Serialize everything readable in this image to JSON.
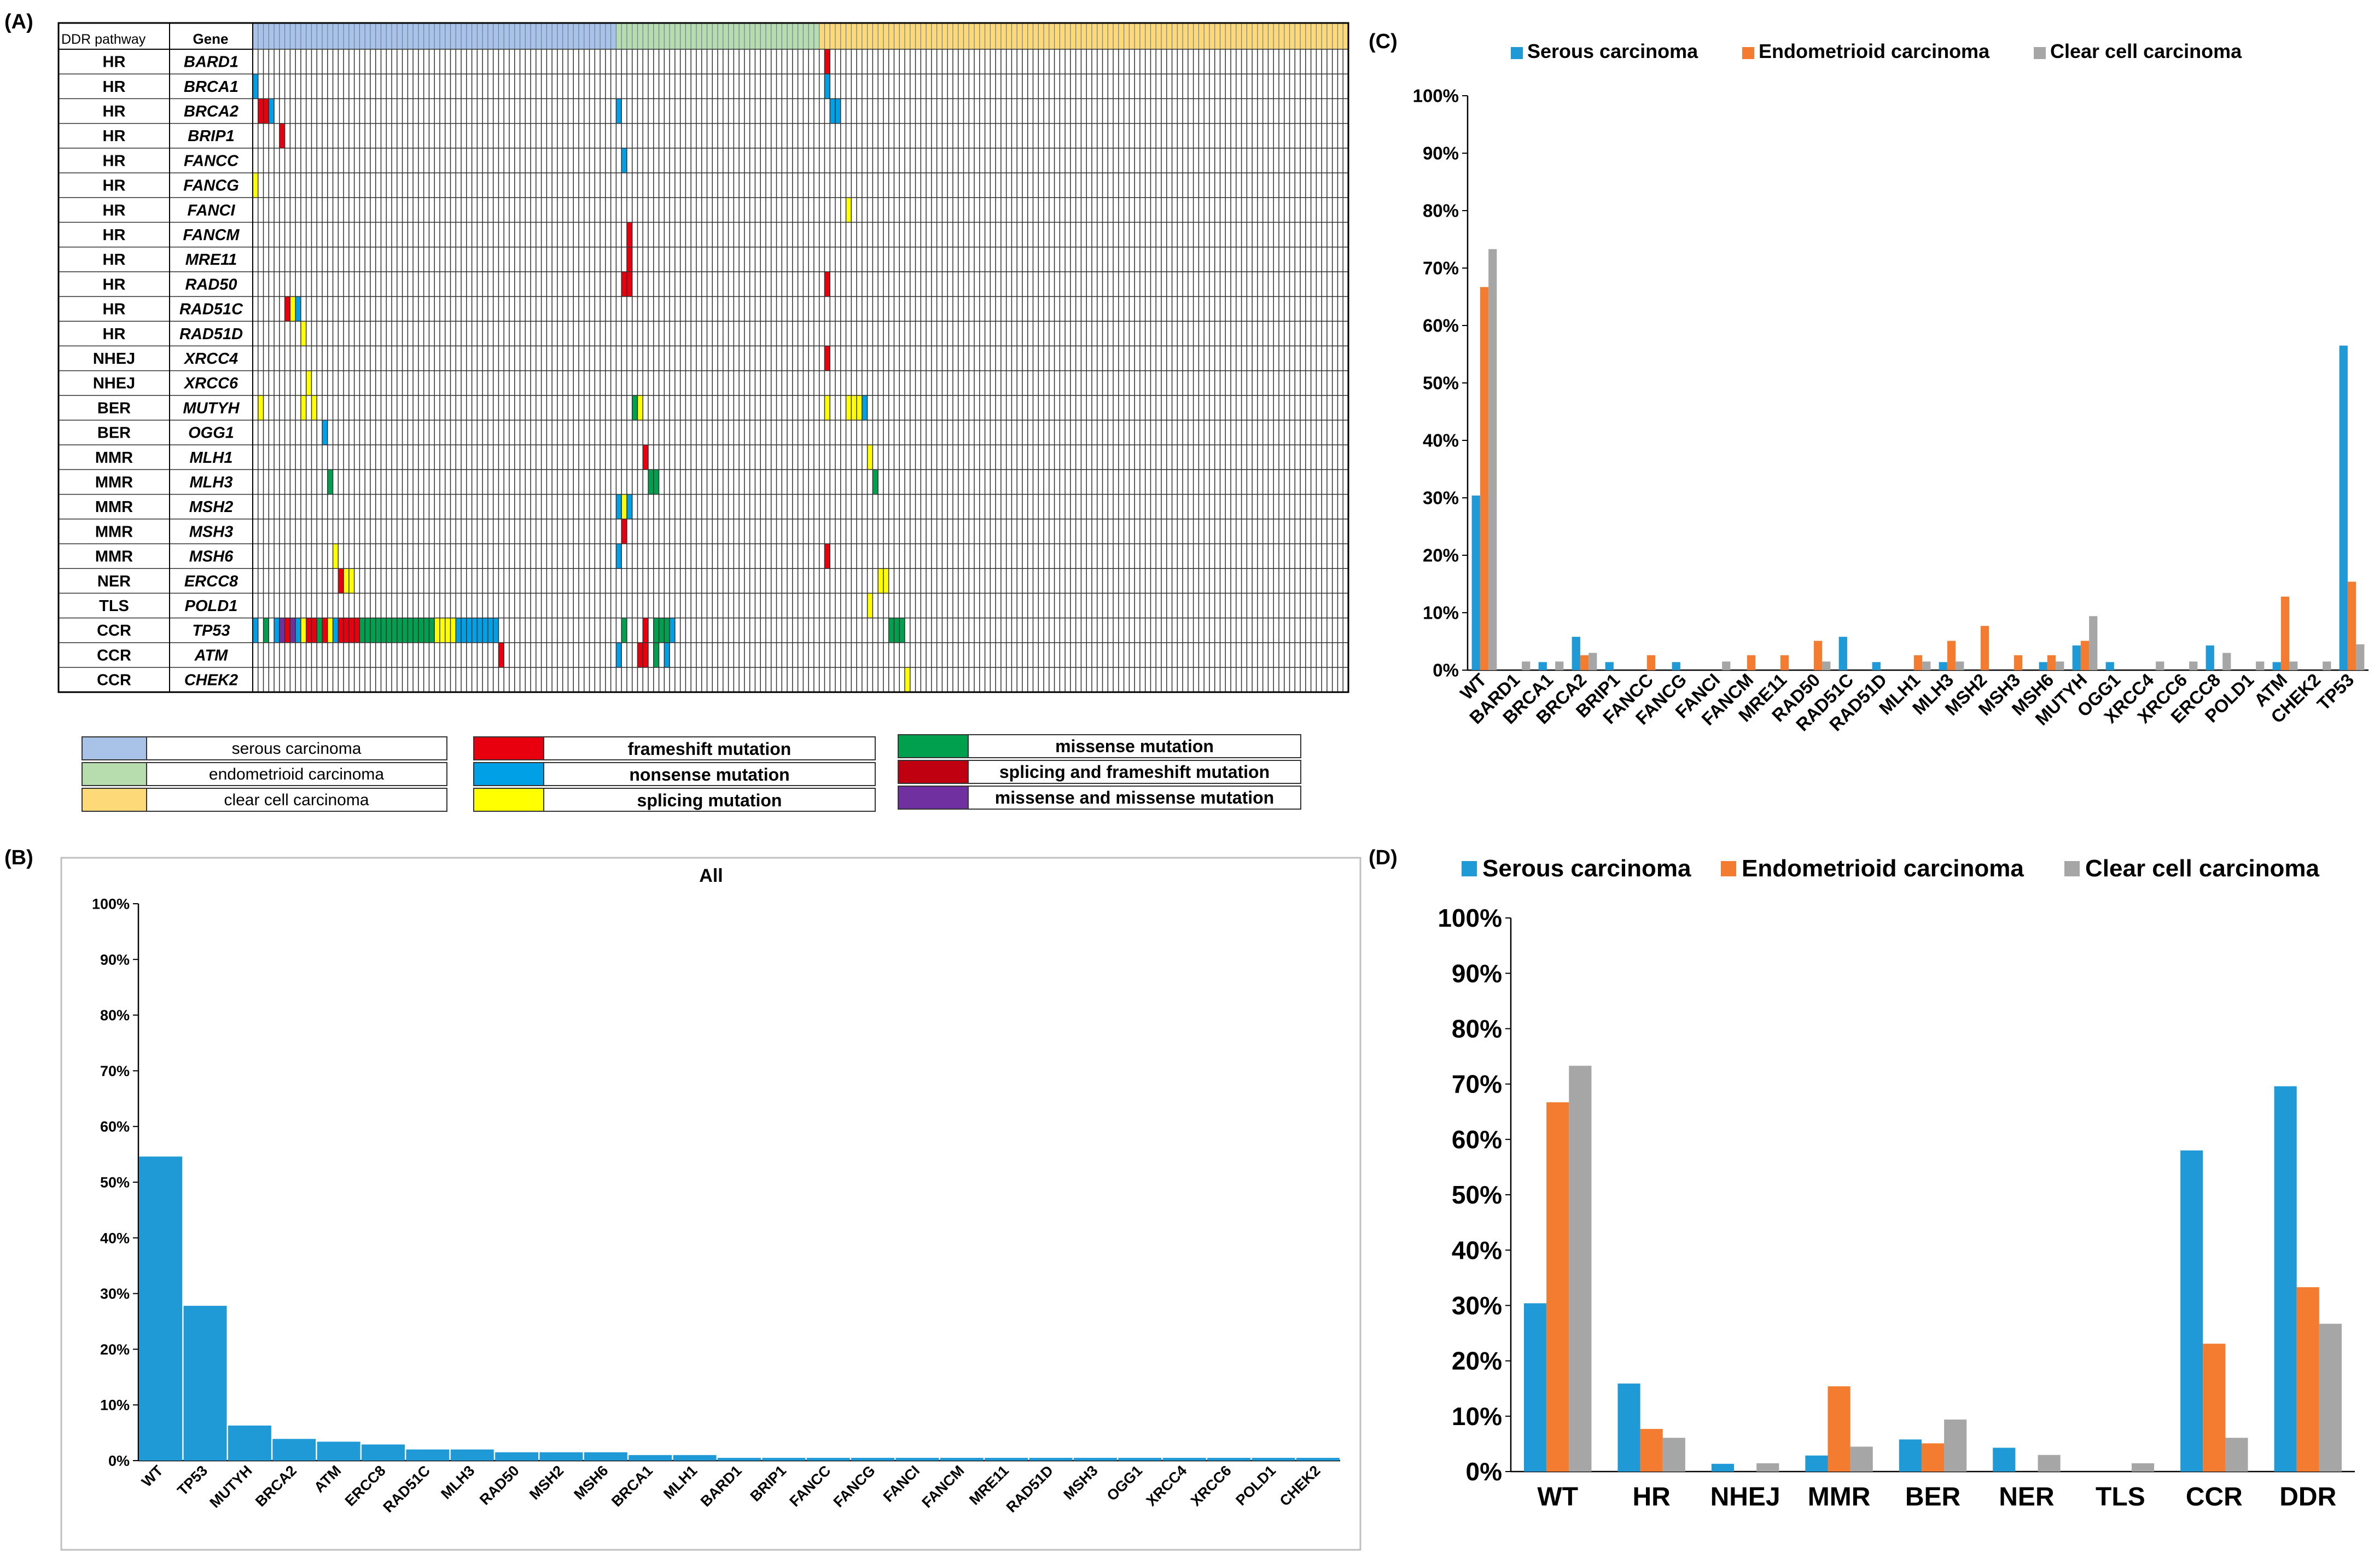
{
  "panel_labels": {
    "a": "(A)",
    "b": "(B)",
    "c": "(C)",
    "d": "(D)"
  },
  "colors": {
    "serous": "#1f9ad6",
    "endometrioid": "#f47c30",
    "clear_cell": "#a6a6a6",
    "serous_bg": "#a9c3e8",
    "endometrioid_bg": "#b7dcae",
    "clear_cell_bg": "#fdd977",
    "frameshift": "#e8000e",
    "nonsense": "#00a0e6",
    "splicing": "#ffff00",
    "missense": "#00a04e",
    "splice_frameshift": "#c00010",
    "missense_missense": "#7030a0",
    "grid": "#303030"
  },
  "oncoprint": {
    "header_pathway": "DDR pathway",
    "header_gene": "Gene",
    "n_samples": 205,
    "group_sizes": [
      68,
      38,
      99
    ],
    "rows": [
      {
        "pathway": "HR",
        "gene": "BARD1"
      },
      {
        "pathway": "HR",
        "gene": "BRCA1"
      },
      {
        "pathway": "HR",
        "gene": "BRCA2"
      },
      {
        "pathway": "HR",
        "gene": "BRIP1"
      },
      {
        "pathway": "HR",
        "gene": "FANCC"
      },
      {
        "pathway": "HR",
        "gene": "FANCG"
      },
      {
        "pathway": "HR",
        "gene": "FANCI"
      },
      {
        "pathway": "HR",
        "gene": "FANCM"
      },
      {
        "pathway": "HR",
        "gene": "MRE11"
      },
      {
        "pathway": "HR",
        "gene": "RAD50"
      },
      {
        "pathway": "HR",
        "gene": "RAD51C"
      },
      {
        "pathway": "HR",
        "gene": "RAD51D"
      },
      {
        "pathway": "NHEJ",
        "gene": "XRCC4"
      },
      {
        "pathway": "NHEJ",
        "gene": "XRCC6"
      },
      {
        "pathway": "BER",
        "gene": "MUTYH"
      },
      {
        "pathway": "BER",
        "gene": "OGG1"
      },
      {
        "pathway": "MMR",
        "gene": "MLH1"
      },
      {
        "pathway": "MMR",
        "gene": "MLH3"
      },
      {
        "pathway": "MMR",
        "gene": "MSH2"
      },
      {
        "pathway": "MMR",
        "gene": "MSH3"
      },
      {
        "pathway": "MMR",
        "gene": "MSH6"
      },
      {
        "pathway": "NER",
        "gene": "ERCC8"
      },
      {
        "pathway": "TLS",
        "gene": "POLD1"
      },
      {
        "pathway": "CCR",
        "gene": "TP53"
      },
      {
        "pathway": "CCR",
        "gene": "ATM"
      },
      {
        "pathway": "CCR",
        "gene": "CHEK2"
      }
    ],
    "mutations": [
      [
        0,
        107,
        "F"
      ],
      [
        1,
        0,
        "N"
      ],
      [
        1,
        107,
        "N"
      ],
      [
        2,
        1,
        "F"
      ],
      [
        2,
        2,
        "F"
      ],
      [
        2,
        3,
        "N"
      ],
      [
        2,
        68,
        "N"
      ],
      [
        2,
        108,
        "N"
      ],
      [
        2,
        109,
        "N"
      ],
      [
        3,
        5,
        "F"
      ],
      [
        4,
        69,
        "N"
      ],
      [
        5,
        0,
        "S"
      ],
      [
        6,
        111,
        "S"
      ],
      [
        7,
        70,
        "F"
      ],
      [
        8,
        70,
        "F"
      ],
      [
        9,
        69,
        "F"
      ],
      [
        9,
        70,
        "F"
      ],
      [
        9,
        107,
        "F"
      ],
      [
        10,
        6,
        "F"
      ],
      [
        10,
        7,
        "S"
      ],
      [
        10,
        8,
        "N"
      ],
      [
        11,
        9,
        "S"
      ],
      [
        12,
        107,
        "F"
      ],
      [
        13,
        10,
        "S"
      ],
      [
        14,
        1,
        "S"
      ],
      [
        14,
        9,
        "S"
      ],
      [
        14,
        11,
        "S"
      ],
      [
        14,
        71,
        "M"
      ],
      [
        14,
        72,
        "S"
      ],
      [
        14,
        107,
        "S"
      ],
      [
        14,
        111,
        "S"
      ],
      [
        14,
        112,
        "S"
      ],
      [
        14,
        113,
        "S"
      ],
      [
        14,
        114,
        "N"
      ],
      [
        15,
        13,
        "N"
      ],
      [
        16,
        73,
        "F"
      ],
      [
        16,
        115,
        "S"
      ],
      [
        17,
        14,
        "M"
      ],
      [
        17,
        74,
        "M"
      ],
      [
        17,
        75,
        "M"
      ],
      [
        17,
        116,
        "M"
      ],
      [
        18,
        68,
        "N"
      ],
      [
        18,
        69,
        "S"
      ],
      [
        18,
        70,
        "N"
      ],
      [
        19,
        69,
        "F"
      ],
      [
        20,
        15,
        "S"
      ],
      [
        20,
        68,
        "N"
      ],
      [
        20,
        107,
        "F"
      ],
      [
        21,
        16,
        "F"
      ],
      [
        21,
        17,
        "S"
      ],
      [
        21,
        18,
        "S"
      ],
      [
        21,
        117,
        "S"
      ],
      [
        21,
        118,
        "S"
      ],
      [
        22,
        115,
        "S"
      ],
      [
        23,
        0,
        "N"
      ],
      [
        23,
        2,
        "M"
      ],
      [
        23,
        4,
        "N"
      ],
      [
        23,
        5,
        "P"
      ],
      [
        23,
        6,
        "F"
      ],
      [
        23,
        7,
        "P"
      ],
      [
        23,
        8,
        "N"
      ],
      [
        23,
        9,
        "S"
      ],
      [
        23,
        10,
        "F"
      ],
      [
        23,
        11,
        "F"
      ],
      [
        23,
        12,
        "M"
      ],
      [
        23,
        13,
        "F"
      ],
      [
        23,
        14,
        "S"
      ],
      [
        23,
        15,
        "N"
      ],
      [
        23,
        16,
        "F"
      ],
      [
        23,
        17,
        "F"
      ],
      [
        23,
        18,
        "F"
      ],
      [
        23,
        19,
        "F"
      ],
      [
        23,
        20,
        "M"
      ],
      [
        23,
        21,
        "M"
      ],
      [
        23,
        22,
        "M"
      ],
      [
        23,
        23,
        "M"
      ],
      [
        23,
        24,
        "M"
      ],
      [
        23,
        25,
        "M"
      ],
      [
        23,
        26,
        "M"
      ],
      [
        23,
        27,
        "M"
      ],
      [
        23,
        28,
        "M"
      ],
      [
        23,
        29,
        "M"
      ],
      [
        23,
        30,
        "M"
      ],
      [
        23,
        31,
        "M"
      ],
      [
        23,
        32,
        "M"
      ],
      [
        23,
        33,
        "M"
      ],
      [
        23,
        34,
        "S"
      ],
      [
        23,
        35,
        "S"
      ],
      [
        23,
        36,
        "S"
      ],
      [
        23,
        37,
        "S"
      ],
      [
        23,
        38,
        "N"
      ],
      [
        23,
        39,
        "N"
      ],
      [
        23,
        40,
        "N"
      ],
      [
        23,
        41,
        "N"
      ],
      [
        23,
        42,
        "N"
      ],
      [
        23,
        43,
        "N"
      ],
      [
        23,
        44,
        "N"
      ],
      [
        23,
        45,
        "N"
      ],
      [
        23,
        69,
        "M"
      ],
      [
        23,
        73,
        "F"
      ],
      [
        23,
        75,
        "M"
      ],
      [
        23,
        76,
        "M"
      ],
      [
        23,
        77,
        "M"
      ],
      [
        23,
        78,
        "N"
      ],
      [
        23,
        119,
        "M"
      ],
      [
        23,
        120,
        "M"
      ],
      [
        23,
        121,
        "M"
      ],
      [
        24,
        46,
        "F"
      ],
      [
        24,
        68,
        "N"
      ],
      [
        24,
        72,
        "F"
      ],
      [
        24,
        73,
        "F"
      ],
      [
        24,
        75,
        "M"
      ],
      [
        24,
        77,
        "N"
      ],
      [
        25,
        122,
        "S"
      ]
    ],
    "legend": {
      "groups": [
        "serous carcinoma",
        "endometrioid carcinoma",
        "clear cell carcinoma"
      ],
      "types": [
        {
          "code": "F",
          "label": "frameshift mutation"
        },
        {
          "code": "N",
          "label": "nonsense mutation"
        },
        {
          "code": "S",
          "label": "splicing mutation"
        },
        {
          "code": "M",
          "label": "missense mutation"
        },
        {
          "code": "X",
          "label": "splicing and frameshift mutation"
        },
        {
          "code": "P",
          "label": "missense and missense mutation"
        }
      ]
    }
  },
  "chart_data": [
    {
      "panel": "B",
      "type": "bar",
      "title": "All",
      "xlabel": "",
      "ylabel": "",
      "ylim": [
        0,
        100
      ],
      "yticks": [
        "0%",
        "10%",
        "20%",
        "30%",
        "40%",
        "50%",
        "60%",
        "70%",
        "80%",
        "90%",
        "100%"
      ],
      "categories": [
        "WT",
        "TP53",
        "MUTYH",
        "BRCA2",
        "ATM",
        "ERCC8",
        "RAD51C",
        "MLH3",
        "RAD50",
        "MSH2",
        "MSH6",
        "BRCA1",
        "MLH1",
        "BARD1",
        "BRIP1",
        "FANCC",
        "FANCG",
        "FANCI",
        "FANCM",
        "MRE11",
        "RAD51D",
        "MSH3",
        "OGG1",
        "XRCC4",
        "XRCC6",
        "POLD1",
        "CHEK2"
      ],
      "values": [
        54.6,
        27.8,
        6.3,
        3.9,
        3.4,
        2.9,
        2.0,
        2.0,
        1.5,
        1.5,
        1.5,
        1.0,
        1.0,
        0.5,
        0.5,
        0.5,
        0.5,
        0.5,
        0.5,
        0.5,
        0.5,
        0.5,
        0.5,
        0.5,
        0.5,
        0.5,
        0.5
      ]
    },
    {
      "panel": "C",
      "type": "bar",
      "xlabel": "",
      "ylabel": "",
      "ylim": [
        0,
        100
      ],
      "yticks": [
        "0%",
        "10%",
        "20%",
        "30%",
        "40%",
        "50%",
        "60%",
        "70%",
        "80%",
        "90%",
        "100%"
      ],
      "legend_position": "top",
      "categories": [
        "WT",
        "BARD1",
        "BRCA1",
        "BRCA2",
        "BRIP1",
        "FANCC",
        "FANCG",
        "FANCI",
        "FANCM",
        "MRE11",
        "RAD50",
        "RAD51C",
        "RAD51D",
        "MLH1",
        "MLH3",
        "MSH2",
        "MSH3",
        "MSH6",
        "MUTYH",
        "OGG1",
        "XRCC4",
        "XRCC6",
        "ERCC8",
        "POLD1",
        "ATM",
        "CHEK2",
        "TP53"
      ],
      "series": [
        {
          "name": "Serous carcinoma",
          "values": [
            30.4,
            0,
            1.4,
            5.8,
            1.4,
            0,
            1.4,
            0,
            0,
            0,
            0,
            5.8,
            1.4,
            0,
            1.4,
            0,
            0,
            1.4,
            4.3,
            1.4,
            0,
            0,
            4.3,
            0,
            1.4,
            0,
            56.5
          ]
        },
        {
          "name": "Endometrioid carcinoma",
          "values": [
            66.7,
            0,
            0,
            2.6,
            0,
            2.6,
            0,
            0,
            2.6,
            2.6,
            5.1,
            0,
            0,
            2.6,
            5.1,
            7.7,
            2.6,
            2.6,
            5.1,
            0,
            0,
            0,
            0,
            0,
            12.8,
            0,
            15.4
          ]
        },
        {
          "name": "Clear cell carcinoma",
          "values": [
            73.3,
            1.5,
            1.5,
            3.0,
            0,
            0,
            0,
            1.5,
            0,
            0,
            1.5,
            0,
            0,
            1.5,
            1.5,
            0,
            0,
            1.5,
            9.4,
            0,
            1.5,
            1.5,
            3.0,
            1.5,
            1.5,
            1.5,
            4.5
          ]
        }
      ]
    },
    {
      "panel": "D",
      "type": "bar",
      "xlabel": "",
      "ylabel": "",
      "ylim": [
        0,
        100
      ],
      "yticks": [
        "0%",
        "10%",
        "20%",
        "30%",
        "40%",
        "50%",
        "60%",
        "70%",
        "80%",
        "90%",
        "100%"
      ],
      "legend_position": "top",
      "categories": [
        "WT",
        "HR",
        "NHEJ",
        "MMR",
        "BER",
        "NER",
        "TLS",
        "CCR",
        "DDR"
      ],
      "series": [
        {
          "name": "Serous carcinoma",
          "values": [
            30.4,
            15.9,
            1.4,
            2.9,
            5.8,
            4.3,
            0,
            58.0,
            69.6
          ]
        },
        {
          "name": "Endometrioid carcinoma",
          "values": [
            66.7,
            7.7,
            0,
            15.4,
            5.1,
            0,
            0,
            23.1,
            33.3
          ]
        },
        {
          "name": "Clear cell carcinoma",
          "values": [
            73.3,
            6.1,
            1.5,
            4.5,
            9.4,
            3.0,
            1.5,
            6.1,
            26.7
          ]
        }
      ]
    }
  ]
}
